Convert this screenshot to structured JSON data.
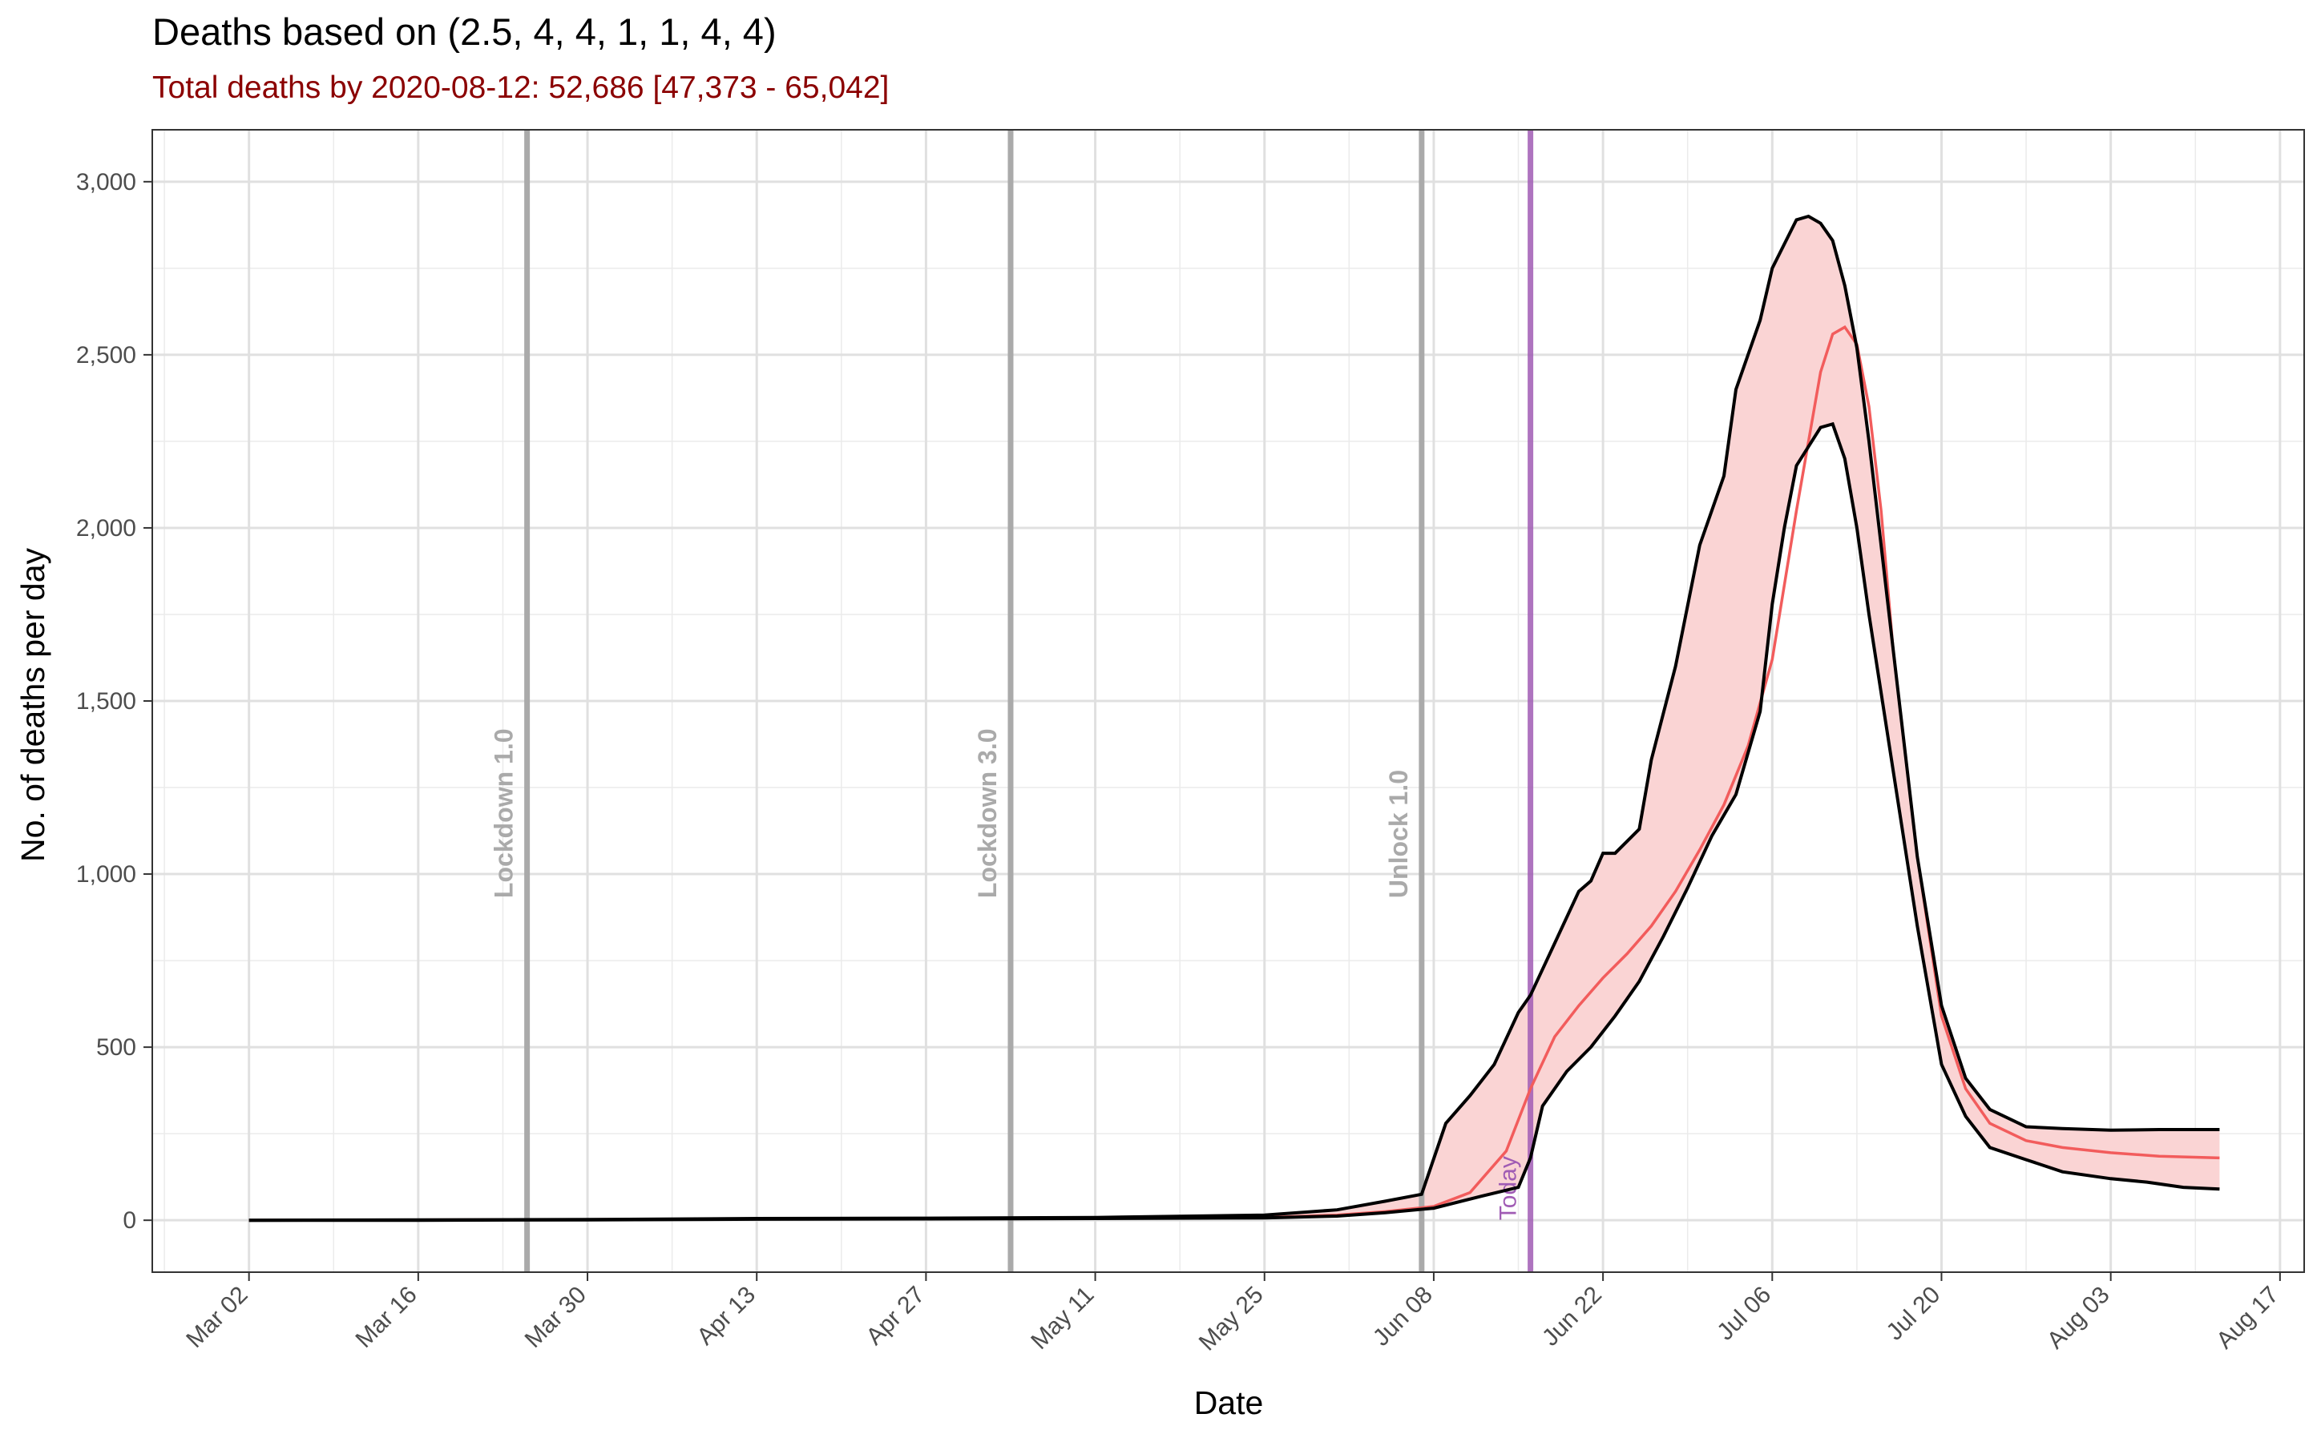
{
  "chart_data": {
    "type": "line",
    "title": "Deaths based on (2.5, 4, 4, 1, 1, 4, 4)",
    "subtitle": "Total deaths by 2020-08-12: 52,686 [47,373 - 65,042]",
    "xlabel": "Date",
    "ylabel": "No. of deaths per day",
    "x_axis_type": "date",
    "xlim": [
      "2020-02-23",
      "2020-08-19"
    ],
    "ylim": [
      -150,
      3150
    ],
    "x_ticks": [
      "Mar 02",
      "Mar 16",
      "Mar 30",
      "Apr 13",
      "Apr 27",
      "May 11",
      "May 25",
      "Jun 08",
      "Jun 22",
      "Jul 06",
      "Jul 20",
      "Aug 03",
      "Aug 17"
    ],
    "y_ticks": [
      "0",
      "500",
      "1,000",
      "1,500",
      "2,000",
      "2,500",
      "3,000"
    ],
    "grid": true,
    "colors": {
      "median": "#F25C5C",
      "ribbon": "#FAD4D4",
      "bounds": "#000000",
      "event_lines": "#AAAAAA",
      "today": "#A05CB4",
      "subtitle": "#8B0000"
    },
    "annotations": [
      {
        "label": "Lockdown 1.0",
        "date": "2020-03-25"
      },
      {
        "label": "Lockdown 3.0",
        "date": "2020-05-04"
      },
      {
        "label": "Unlock 1.0",
        "date": "2020-06-07"
      },
      {
        "label": "Today",
        "date": "2020-06-16"
      }
    ],
    "series": [
      {
        "role": "median",
        "x": [
          "2020-03-02",
          "2020-03-16",
          "2020-03-30",
          "2020-04-13",
          "2020-04-27",
          "2020-05-11",
          "2020-05-25",
          "2020-05-31",
          "2020-06-04",
          "2020-06-08",
          "2020-06-11",
          "2020-06-14",
          "2020-06-16",
          "2020-06-18",
          "2020-06-20",
          "2020-06-22",
          "2020-06-24",
          "2020-06-26",
          "2020-06-28",
          "2020-06-30",
          "2020-07-02",
          "2020-07-04",
          "2020-07-06",
          "2020-07-08",
          "2020-07-10",
          "2020-07-11",
          "2020-07-12",
          "2020-07-13",
          "2020-07-14",
          "2020-07-15",
          "2020-07-16",
          "2020-07-18",
          "2020-07-20",
          "2020-07-22",
          "2020-07-24",
          "2020-07-27",
          "2020-07-30",
          "2020-08-03",
          "2020-08-07",
          "2020-08-12"
        ],
        "values": [
          0,
          1,
          2,
          4,
          5,
          6,
          8,
          15,
          25,
          40,
          80,
          200,
          380,
          530,
          620,
          700,
          770,
          850,
          950,
          1070,
          1200,
          1370,
          1620,
          2050,
          2450,
          2560,
          2580,
          2530,
          2350,
          2050,
          1650,
          1050,
          590,
          380,
          280,
          230,
          210,
          195,
          185,
          180
        ]
      },
      {
        "role": "upper",
        "x": [
          "2020-03-02",
          "2020-03-16",
          "2020-03-30",
          "2020-04-13",
          "2020-04-27",
          "2020-05-11",
          "2020-05-25",
          "2020-05-31",
          "2020-06-04",
          "2020-06-07",
          "2020-06-09",
          "2020-06-11",
          "2020-06-13",
          "2020-06-15",
          "2020-06-16",
          "2020-06-18",
          "2020-06-20",
          "2020-06-21",
          "2020-06-22",
          "2020-06-23",
          "2020-06-25",
          "2020-06-26",
          "2020-06-28",
          "2020-06-30",
          "2020-07-02",
          "2020-07-03",
          "2020-07-05",
          "2020-07-06",
          "2020-07-08",
          "2020-07-09",
          "2020-07-10",
          "2020-07-11",
          "2020-07-12",
          "2020-07-13",
          "2020-07-14",
          "2020-07-15",
          "2020-07-16",
          "2020-07-18",
          "2020-07-20",
          "2020-07-22",
          "2020-07-24",
          "2020-07-27",
          "2020-07-30",
          "2020-08-03",
          "2020-08-07",
          "2020-08-12"
        ],
        "values": [
          0,
          1,
          2,
          5,
          6,
          8,
          15,
          30,
          55,
          75,
          280,
          360,
          450,
          600,
          650,
          800,
          950,
          980,
          1060,
          1060,
          1130,
          1330,
          1600,
          1950,
          2150,
          2400,
          2600,
          2750,
          2890,
          2900,
          2880,
          2830,
          2700,
          2520,
          2250,
          1950,
          1650,
          1050,
          620,
          410,
          320,
          270,
          265,
          260,
          262,
          262
        ]
      },
      {
        "role": "lower",
        "x": [
          "2020-03-02",
          "2020-03-16",
          "2020-03-30",
          "2020-04-13",
          "2020-04-27",
          "2020-05-11",
          "2020-05-25",
          "2020-05-31",
          "2020-06-04",
          "2020-06-08",
          "2020-06-12",
          "2020-06-15",
          "2020-06-16",
          "2020-06-17",
          "2020-06-19",
          "2020-06-21",
          "2020-06-23",
          "2020-06-25",
          "2020-06-27",
          "2020-06-29",
          "2020-07-01",
          "2020-07-03",
          "2020-07-05",
          "2020-07-06",
          "2020-07-07",
          "2020-07-08",
          "2020-07-10",
          "2020-07-11",
          "2020-07-12",
          "2020-07-13",
          "2020-07-14",
          "2020-07-16",
          "2020-07-18",
          "2020-07-20",
          "2020-07-22",
          "2020-07-24",
          "2020-07-27",
          "2020-07-30",
          "2020-08-03",
          "2020-08-06",
          "2020-08-09",
          "2020-08-12"
        ],
        "values": [
          0,
          0,
          1,
          3,
          4,
          5,
          7,
          12,
          22,
          35,
          70,
          95,
          180,
          330,
          430,
          500,
          590,
          690,
          820,
          960,
          1110,
          1230,
          1470,
          1780,
          2000,
          2180,
          2290,
          2300,
          2200,
          2000,
          1750,
          1300,
          850,
          450,
          300,
          210,
          175,
          140,
          120,
          110,
          95,
          90
        ]
      }
    ]
  }
}
